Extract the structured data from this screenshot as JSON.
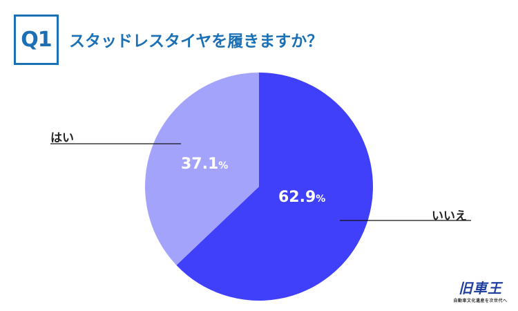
{
  "header": {
    "question_number": "Q1",
    "title": "スタッドレスタイヤを履きますか？"
  },
  "labels": {
    "yes": "はい",
    "no": "いいえ"
  },
  "percentages": {
    "yes_value": "37.1",
    "no_value": "62.9",
    "unit": "%"
  },
  "logo": {
    "main": "旧車王",
    "sub": "自動車文化遺産を次世代へ"
  },
  "colors": {
    "title_blue": "#1a6fb5",
    "yes_slice": "#a3a3fb",
    "no_slice": "#4040fb"
  },
  "chart_data": {
    "type": "pie",
    "title": "スタッドレスタイヤを履きますか？",
    "categories": [
      "いいえ",
      "はい"
    ],
    "values": [
      62.9,
      37.1
    ],
    "unit": "%",
    "colors": [
      "#4040fb",
      "#a3a3fb"
    ],
    "start_angle": "12 o'clock, clockwise",
    "legend": "none (callout labels)"
  }
}
